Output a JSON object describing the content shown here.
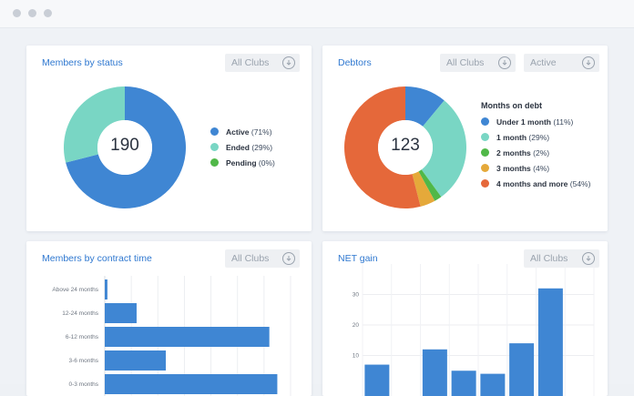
{
  "colors": {
    "blue": "#3f86d3",
    "teal": "#79d6c4",
    "green": "#50b848",
    "yellow": "#e5a93a",
    "orange": "#e5683a",
    "title_blue": "#2f78d0"
  },
  "cards": {
    "members_status": {
      "title": "Members by status",
      "filter": "All Clubs",
      "center_value": "190",
      "legend": [
        {
          "name": "Active",
          "pct": "(71%)",
          "color": "#3f86d3"
        },
        {
          "name": "Ended",
          "pct": "(29%)",
          "color": "#79d6c4"
        },
        {
          "name": "Pending",
          "pct": "(0%)",
          "color": "#50b848"
        }
      ]
    },
    "debtors": {
      "title": "Debtors",
      "filter_clubs": "All Clubs",
      "filter_status": "Active",
      "center_value": "123",
      "legend_title": "Months on debt",
      "legend": [
        {
          "name": "Under 1 month",
          "pct": "(11%)",
          "color": "#3f86d3"
        },
        {
          "name": "1 month",
          "pct": "(29%)",
          "color": "#79d6c4"
        },
        {
          "name": "2 months",
          "pct": "(2%)",
          "color": "#50b848"
        },
        {
          "name": "3 months",
          "pct": "(4%)",
          "color": "#e5a93a"
        },
        {
          "name": "4 months and more",
          "pct": "(54%)",
          "color": "#e5683a"
        }
      ]
    },
    "contract_time": {
      "title": "Members by contract time",
      "filter": "All Clubs"
    },
    "net_gain": {
      "title": "NET gain",
      "filter": "All Clubs"
    }
  },
  "chart_data": [
    {
      "type": "pie",
      "categories": [
        "Active",
        "Ended",
        "Pending"
      ],
      "values": [
        71,
        29,
        0
      ],
      "center_label": "190"
    },
    {
      "type": "pie",
      "categories": [
        "Under 1 month",
        "1 month",
        "2 months",
        "3 months",
        "4 months and more"
      ],
      "values": [
        11,
        29,
        2,
        4,
        54
      ],
      "center_label": "123"
    },
    {
      "type": "bar",
      "orientation": "horizontal",
      "categories": [
        "Above 24 months",
        "12-24 months",
        "6-12 months",
        "3-6 months",
        "0-3 months"
      ],
      "values": [
        1,
        12,
        62,
        23,
        65
      ],
      "xlim": [
        0,
        70
      ],
      "grid": true
    },
    {
      "type": "bar",
      "orientation": "vertical",
      "values": [
        7,
        0,
        12,
        5,
        4,
        14,
        32,
        0
      ],
      "ylim": [
        0,
        40
      ],
      "yticks": [
        10,
        20,
        30
      ],
      "grid": true
    }
  ]
}
